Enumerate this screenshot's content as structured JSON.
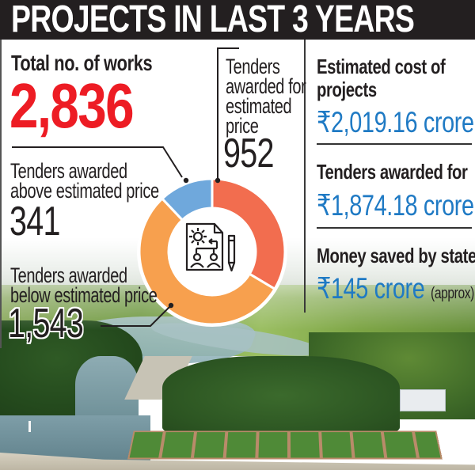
{
  "header": {
    "title": "PROJECTS IN LAST 3 YEARS"
  },
  "left": {
    "total_label": "Total no. of works",
    "total_value": "2,836",
    "above": {
      "line1": "Tenders awarded",
      "line2": "above estimated price",
      "value": "341"
    },
    "below": {
      "line1": "Tenders awarded",
      "line2": "below estimated price",
      "value": "1,543"
    }
  },
  "center": {
    "at_estimate": {
      "line1": "Tenders",
      "line2": "awarded for",
      "line3": "estimated",
      "line4": "price",
      "value": "952"
    }
  },
  "right": {
    "estimated_cost": {
      "line1": "Estimated cost of",
      "line2": "projects",
      "value": "₹2,019.16 crore"
    },
    "tenders_awarded_for": {
      "label": "Tenders awarded for",
      "value": "₹1,874.18 crore"
    },
    "money_saved": {
      "label": "Money saved by state",
      "value": "₹145 crore",
      "note": "(approx)"
    }
  },
  "icons": {
    "center_icon": "document-gear-people-pencil-icon"
  },
  "colors": {
    "header_bg": "#231f20",
    "total_red": "#ed1c24",
    "money_blue": "#1f7ac4",
    "slice_estimated": "#f26d4f",
    "slice_below": "#f7a04e",
    "slice_above": "#6fa8dc"
  },
  "chart_data": {
    "type": "pie",
    "title": "Projects in last 3 years",
    "subtitle": "Total no. of works: 2,836",
    "categories": [
      "Tenders awarded for estimated price",
      "Tenders awarded below estimated price",
      "Tenders awarded above estimated price"
    ],
    "values": [
      952,
      1543,
      341
    ],
    "colors": [
      "#f26d4f",
      "#f7a04e",
      "#6fa8dc"
    ],
    "donut": true,
    "total": 2836,
    "annotations": [
      "Estimated cost of projects: ₹2,019.16 crore",
      "Tenders awarded for: ₹1,874.18 crore",
      "Money saved by state: ₹145 crore (approx)"
    ]
  }
}
